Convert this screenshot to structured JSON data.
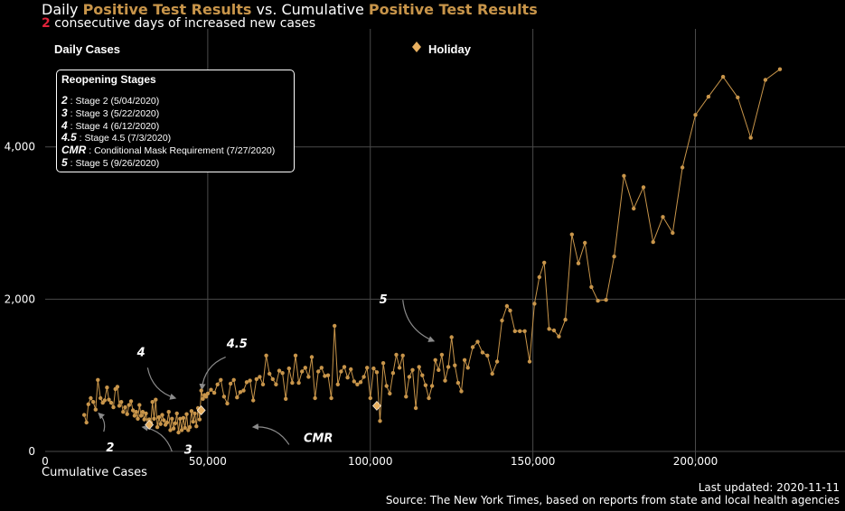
{
  "title": {
    "prefix": "Daily ",
    "highlight1": "Positive Test Results",
    "middle": " vs. Cumulative ",
    "highlight2": "Positive Test Results"
  },
  "subtitle": {
    "number": "2",
    "text": " consecutive days of increased new cases"
  },
  "footer": {
    "updated": "Last updated: 2020-11-11",
    "source": "Source: The New York Times, based on reports from state and local health agencies"
  },
  "legend": {
    "title": "Reopening Stages",
    "stages": [
      {
        "key": "2",
        "text": " : Stage 2 (5/04/2020)"
      },
      {
        "key": "3",
        "text": " : Stage 3 (5/22/2020)"
      },
      {
        "key": "4",
        "text": " : Stage 4 (6/12/2020)"
      },
      {
        "key": "4.5",
        "text": " : Stage 4.5 (7/3/2020)"
      },
      {
        "key": "CMR",
        "text": " : Conditional Mask Requirement (7/27/2020)"
      },
      {
        "key": "5",
        "text": " : Stage 5 (9/26/2020)"
      }
    ]
  },
  "colors": {
    "line": "#c8954a",
    "holiday": "#e8b060",
    "grid": "#4a4a4a",
    "arrow": "#8a8a8a",
    "highlight_number": "#e0233a"
  },
  "chart_data": {
    "type": "line",
    "title": "Daily Positive Test Results vs. Cumulative Positive Test Results",
    "xlabel": "Cumulative Cases",
    "ylabel": "Daily Cases",
    "xlim": [
      0,
      246000
    ],
    "ylim": [
      -130,
      5550
    ],
    "xticks": [
      0,
      50000,
      100000,
      150000,
      200000
    ],
    "xtick_labels": [
      "0",
      "50,000",
      "100,000",
      "150,000",
      "200,000"
    ],
    "yticks": [
      0,
      2000,
      4000
    ],
    "ytick_labels": [
      "0",
      "2,000",
      "4,000"
    ],
    "grid": true,
    "holiday_legend_label": "Holiday",
    "series": [
      {
        "x": [
          12000,
          12700,
          13300,
          14000,
          14800,
          15500,
          16200,
          17000,
          17700,
          18300,
          19000,
          19600,
          20300,
          21000,
          21600,
          22200,
          22800,
          23400,
          24000,
          24600,
          25200,
          25800,
          26400,
          27000,
          27500,
          28000,
          28500,
          29000,
          29500,
          30000,
          30500,
          31000,
          31500,
          32000,
          32500,
          33000,
          33500,
          34000,
          34500,
          35000,
          35500,
          36000,
          36500,
          37000,
          37500,
          38000,
          38500,
          39000,
          39500,
          40000,
          40500,
          41000,
          41500,
          42000,
          42500,
          43000,
          43500,
          44000,
          44500,
          45000,
          45500,
          46000,
          46500,
          47000,
          47500,
          48000,
          48500,
          49000,
          49500,
          50000,
          51000,
          52000,
          53000,
          54000,
          55000,
          56000,
          57000,
          58000,
          59000,
          60000,
          61000,
          62000,
          63000,
          64000,
          65000,
          66000,
          67000,
          68000,
          69000,
          70000,
          71000,
          72000,
          73000,
          74000,
          75000,
          76000,
          77000,
          78000,
          79000,
          80000,
          81000,
          82000,
          83000,
          84000,
          85000,
          86000,
          87000,
          88000,
          89000,
          90000,
          91000,
          92000,
          93000,
          94000,
          95000,
          96000,
          97000,
          98000,
          99000,
          100000,
          101000,
          102000,
          103000,
          104000,
          105000,
          106000,
          107000,
          108000,
          109000,
          110000,
          111000,
          112000,
          113000,
          114000,
          115000,
          116000,
          117000,
          118000,
          119000,
          120000,
          121000,
          122000,
          123000,
          124000,
          125000,
          126000,
          127000,
          128000,
          129000,
          130000,
          131500,
          133000,
          134500,
          136000,
          137500,
          139000,
          140500,
          142000,
          143000,
          144500,
          146000,
          147500,
          149000,
          150500,
          152000,
          153500,
          155000,
          156500,
          158000,
          160000,
          162000,
          164000,
          166000,
          168000,
          170000,
          172500,
          175000,
          178000,
          181000,
          184000,
          187000,
          190000,
          193000,
          196000,
          200000,
          204000,
          208500,
          213000,
          217000,
          221500,
          226000
        ],
        "y": [
          480,
          380,
          620,
          700,
          650,
          550,
          940,
          700,
          640,
          670,
          840,
          680,
          640,
          580,
          820,
          850,
          600,
          650,
          520,
          580,
          490,
          610,
          660,
          540,
          470,
          520,
          430,
          610,
          470,
          520,
          420,
          500,
          350,
          420,
          380,
          650,
          430,
          680,
          320,
          450,
          360,
          480,
          410,
          350,
          380,
          520,
          280,
          430,
          300,
          370,
          500,
          250,
          430,
          280,
          440,
          310,
          490,
          280,
          320,
          530,
          390,
          500,
          330,
          570,
          420,
          800,
          690,
          740,
          720,
          760,
          810,
          770,
          880,
          940,
          720,
          630,
          890,
          940,
          710,
          780,
          800,
          910,
          930,
          670,
          950,
          980,
          880,
          1260,
          1020,
          950,
          880,
          1060,
          1030,
          690,
          1090,
          900,
          1260,
          900,
          1050,
          1100,
          980,
          1240,
          700,
          1050,
          1100,
          990,
          1000,
          700,
          1650,
          880,
          1050,
          1110,
          970,
          1080,
          920,
          880,
          910,
          980,
          1100,
          700,
          1090,
          1040,
          400,
          1160,
          860,
          760,
          1030,
          1270,
          1100,
          1260,
          720,
          980,
          1070,
          570,
          1110,
          1000,
          870,
          700,
          860,
          1200,
          1070,
          1270,
          930,
          1110,
          1500,
          1130,
          900,
          790,
          1200,
          1100,
          1370,
          1440,
          1300,
          1260,
          1020,
          1180,
          1720,
          1910,
          1850,
          1580,
          1580,
          1580,
          1180,
          1940,
          2290,
          2480,
          1610,
          1590,
          1510,
          1730,
          2850,
          2470,
          2740,
          2160,
          1980,
          1990,
          2560,
          3620,
          3190,
          3470,
          2750,
          3080,
          2870,
          3730,
          4420,
          4660,
          4920,
          4650,
          4120,
          4880,
          5020
        ]
      }
    ],
    "holidays": [
      {
        "x": 32000,
        "y": 350
      },
      {
        "x": 48000,
        "y": 540
      },
      {
        "x": 102000,
        "y": 600
      }
    ],
    "annotations": [
      {
        "label": "2",
        "label_at": [
          20000,
          50
        ],
        "arrow": [
          [
            18000,
            260
          ],
          [
            16500,
            500
          ]
        ]
      },
      {
        "label": "3",
        "label_at": [
          44000,
          20
        ],
        "arrow": [
          [
            39000,
            0
          ],
          [
            30000,
            320
          ]
        ]
      },
      {
        "label": "4",
        "label_at": [
          29500,
          1300
        ],
        "arrow": [
          [
            31500,
            1100
          ],
          [
            40000,
            700
          ]
        ]
      },
      {
        "label": "4.5",
        "label_at": [
          59000,
          1410
        ],
        "arrow": [
          [
            55500,
            1240
          ],
          [
            48200,
            820
          ]
        ]
      },
      {
        "label": "CMR",
        "label_at": [
          84000,
          170
        ],
        "arrow": [
          [
            75000,
            90
          ],
          [
            64000,
            320
          ]
        ]
      },
      {
        "label": "5",
        "label_at": [
          104000,
          1990
        ],
        "arrow": [
          [
            110000,
            1990
          ],
          [
            119500,
            1450
          ]
        ]
      }
    ]
  }
}
